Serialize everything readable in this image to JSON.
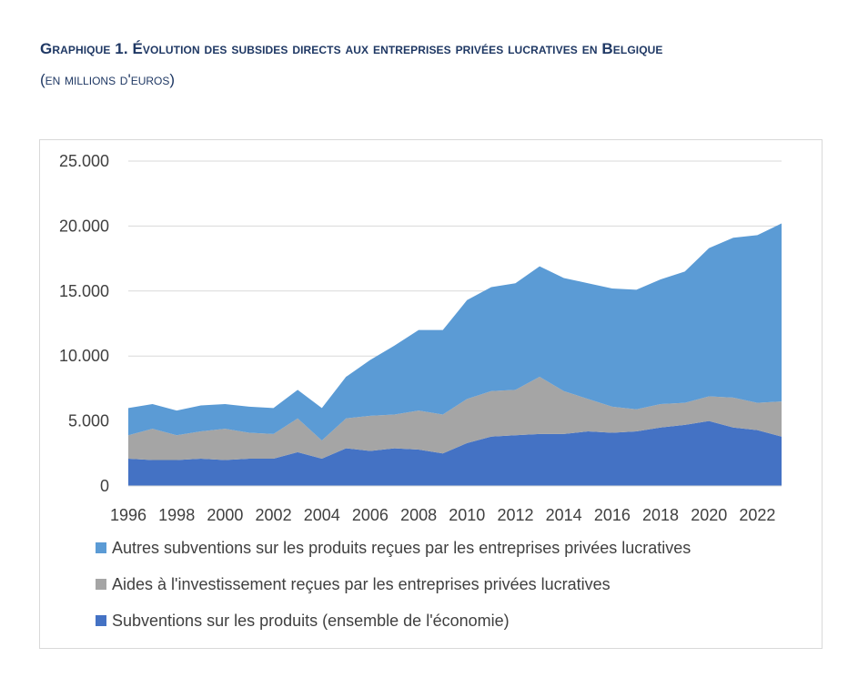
{
  "title_block": {
    "title": "Graphique 1. Évolution des subsides directs aux entreprises privées lucratives en Belgique",
    "subtitle": "(en millions d'euros)"
  },
  "colors": {
    "autres": "#5b9bd5",
    "aides": "#a5a5a5",
    "subventions": "#4472c4",
    "grid": "#d9d9d9",
    "text": "#404040",
    "title": "#1f3864"
  },
  "chart_data": {
    "type": "area",
    "stacked": true,
    "title": "Graphique 1. Évolution des subsides directs aux entreprises privées lucratives en Belgique",
    "subtitle": "(en millions d'euros)",
    "xlabel": "",
    "ylabel": "",
    "x": [
      1996,
      1997,
      1998,
      1999,
      2000,
      2001,
      2002,
      2003,
      2004,
      2005,
      2006,
      2007,
      2008,
      2009,
      2010,
      2011,
      2012,
      2013,
      2014,
      2015,
      2016,
      2017,
      2018,
      2019,
      2020,
      2021,
      2022,
      2023
    ],
    "x_tick_labels": [
      "1996",
      "1998",
      "2000",
      "2002",
      "2004",
      "2006",
      "2008",
      "2010",
      "2012",
      "2014",
      "2016",
      "2018",
      "2020",
      "2022"
    ],
    "x_tick_values": [
      1996,
      1998,
      2000,
      2002,
      2004,
      2006,
      2008,
      2010,
      2012,
      2014,
      2016,
      2018,
      2020,
      2022
    ],
    "y_tick_labels": [
      "0",
      "5.000",
      "10.000",
      "15.000",
      "20.000",
      "25.000"
    ],
    "y_tick_values": [
      0,
      5000,
      10000,
      15000,
      20000,
      25000
    ],
    "ylim": [
      0,
      25000
    ],
    "grid": true,
    "legend_position": "bottom",
    "series": [
      {
        "name": "Subventions sur les produits (ensemble de l'économie)",
        "color_key": "subventions",
        "values": [
          2100,
          2000,
          2000,
          2100,
          2000,
          2100,
          2100,
          2600,
          2100,
          2900,
          2700,
          2900,
          2800,
          2500,
          3300,
          3800,
          3900,
          4000,
          4000,
          4200,
          4100,
          4200,
          4500,
          4700,
          5000,
          4500,
          4300,
          3800
        ]
      },
      {
        "name": "Aides à l'investissement reçues par les entreprises privées lucratives",
        "color_key": "aides",
        "values": [
          1800,
          2400,
          1900,
          2100,
          2400,
          2000,
          1900,
          2600,
          1400,
          2300,
          2700,
          2600,
          3000,
          3000,
          3400,
          3500,
          3500,
          4400,
          3300,
          2500,
          2000,
          1700,
          1800,
          1700,
          1900,
          2300,
          2100,
          2700
        ]
      },
      {
        "name": "Autres subventions sur les produits reçues par les entreprises privées lucratives",
        "color_key": "autres",
        "values": [
          2100,
          1900,
          1900,
          2000,
          1900,
          2000,
          2000,
          2200,
          2500,
          3200,
          4300,
          5300,
          6200,
          6500,
          7600,
          8000,
          8200,
          8500,
          8700,
          8900,
          9100,
          9200,
          9600,
          10100,
          11400,
          12300,
          12900,
          13700
        ]
      }
    ],
    "legend_order": [
      2,
      1,
      0
    ]
  }
}
